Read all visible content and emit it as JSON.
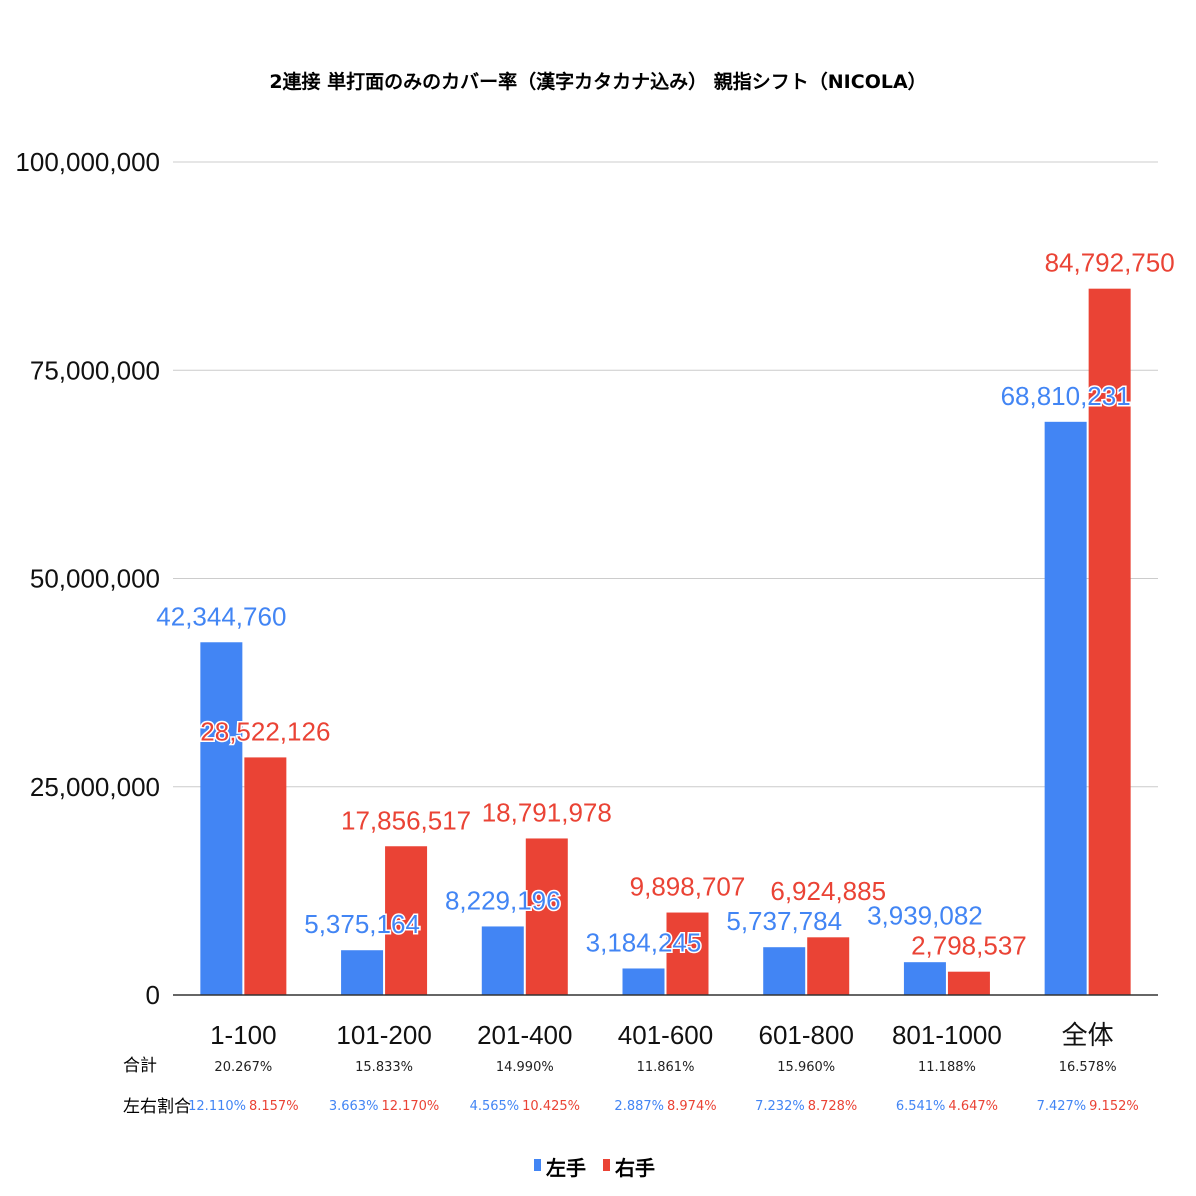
{
  "chart_data": {
    "type": "bar",
    "title": "2連接 単打面のみのカバー率（漢字カタカナ込み） 親指シフト（NICOLA）",
    "categories": [
      "1-100",
      "101-200",
      "201-400",
      "401-600",
      "601-800",
      "801-1000",
      "全体"
    ],
    "series": [
      {
        "name": "左手",
        "color": "#4285f4",
        "values": [
          42344760,
          5375164,
          8229196,
          3184245,
          5737784,
          3939082,
          68810231
        ],
        "labels": [
          "42,344,760",
          "5,375,164",
          "8,229,196",
          "3,184,245",
          "5,737,784",
          "3,939,082",
          "68,810,231"
        ]
      },
      {
        "name": "右手",
        "color": "#ea4335",
        "values": [
          28522126,
          17856517,
          18791978,
          9898707,
          6924885,
          2798537,
          84792750
        ],
        "labels": [
          "28,522,126",
          "17,856,517",
          "18,791,978",
          "9,898,707",
          "6,924,885",
          "2,798,537",
          "84,792,750"
        ]
      }
    ],
    "ylim": [
      0,
      100000000
    ],
    "yticks": [
      "0",
      "25,000,000",
      "50,000,000",
      "75,000,000",
      "100,000,000"
    ],
    "ytick_values": [
      0,
      25000000,
      50000000,
      75000000,
      100000000
    ],
    "grid": true,
    "legend_position": "bottom",
    "table": {
      "row1_label": "合計",
      "row2_label": "左右割合",
      "totals": [
        "20.267%",
        "15.833%",
        "14.990%",
        "11.861%",
        "15.960%",
        "11.188%",
        "16.578%"
      ],
      "left_ratio": [
        "12.110%",
        "3.663%",
        "4.565%",
        "2.887%",
        "7.232%",
        "6.541%",
        "7.427%"
      ],
      "right_ratio": [
        "8.157%",
        "12.170%",
        "10.425%",
        "8.974%",
        "8.728%",
        "4.647%",
        "9.152%"
      ]
    }
  }
}
